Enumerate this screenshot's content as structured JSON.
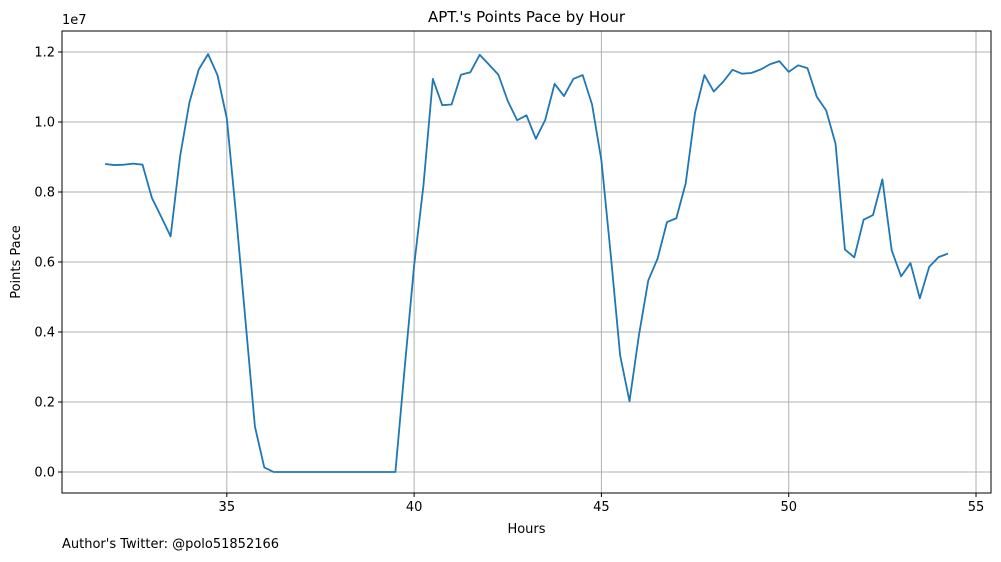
{
  "chart_data": {
    "type": "line",
    "title": "APT.'s Points Pace by Hour",
    "xlabel": "Hours",
    "ylabel": "Points Pace",
    "y_offset_label": "1e7",
    "y_scale": 10000000,
    "xlim": [
      30.6,
      55.4
    ],
    "ylim": [
      -600000,
      12600000
    ],
    "grid": true,
    "x_ticks": [
      35,
      40,
      45,
      50,
      55
    ],
    "y_ticks": [
      0,
      2000000,
      4000000,
      6000000,
      8000000,
      10000000,
      12000000
    ],
    "y_tick_labels": [
      "0.0",
      "0.2",
      "0.4",
      "0.6",
      "0.8",
      "1.0",
      "1.2"
    ],
    "line_color": "#1f77b4",
    "series": [
      {
        "x": [
          31.75,
          32.0,
          32.25,
          32.5,
          32.75,
          33.0,
          33.25,
          33.5,
          33.75,
          34.0,
          34.25,
          34.5,
          34.75,
          35.0,
          35.25,
          35.5,
          35.75,
          36.0,
          36.25,
          36.5,
          36.75,
          37.0,
          37.25,
          37.5,
          37.75,
          38.0,
          38.25,
          38.5,
          38.75,
          39.0,
          39.25,
          39.5,
          39.75,
          40.0,
          40.25,
          40.5,
          40.75,
          41.0,
          41.25,
          41.5,
          41.75,
          42.0,
          42.25,
          42.5,
          42.75,
          43.0,
          43.25,
          43.5,
          43.75,
          44.0,
          44.25,
          44.5,
          44.75,
          45.0,
          45.25,
          45.5,
          45.75,
          46.0,
          46.25,
          46.5,
          46.75,
          47.0,
          47.25,
          47.5,
          47.75,
          48.0,
          48.25,
          48.5,
          48.75,
          49.0,
          49.25,
          49.5,
          49.75,
          50.0,
          50.25,
          50.5,
          50.75,
          51.0,
          51.25,
          51.5,
          51.75,
          52.0,
          52.25,
          52.5,
          52.75,
          53.0,
          53.25,
          53.5,
          53.75,
          54.0,
          54.25
        ],
        "values": [
          8800000,
          8770000,
          8780000,
          8810000,
          8780000,
          7830000,
          7290000,
          6730000,
          9000000,
          10550000,
          11500000,
          11940000,
          11340000,
          10100000,
          7300000,
          4300000,
          1300000,
          130000,
          0,
          0,
          0,
          0,
          0,
          0,
          0,
          0,
          0,
          0,
          0,
          0,
          0,
          0,
          3000000,
          5900000,
          8200000,
          11230000,
          10480000,
          10500000,
          11350000,
          11420000,
          11920000,
          11640000,
          11350000,
          10600000,
          10050000,
          10190000,
          9520000,
          10060000,
          11090000,
          10740000,
          11230000,
          11340000,
          10500000,
          8900000,
          6200000,
          3330000,
          2020000,
          3900000,
          5470000,
          6100000,
          7140000,
          7250000,
          8250000,
          10270000,
          11340000,
          10870000,
          11150000,
          11490000,
          11380000,
          11400000,
          11500000,
          11650000,
          11740000,
          11430000,
          11620000,
          11540000,
          10720000,
          10330000,
          9380000,
          6360000,
          6130000,
          7210000,
          7340000,
          8360000,
          6330000,
          5590000,
          5970000,
          4960000,
          5860000,
          6140000,
          6240000
        ]
      }
    ]
  },
  "footer": {
    "author": "Author's Twitter: @polo51852166"
  }
}
